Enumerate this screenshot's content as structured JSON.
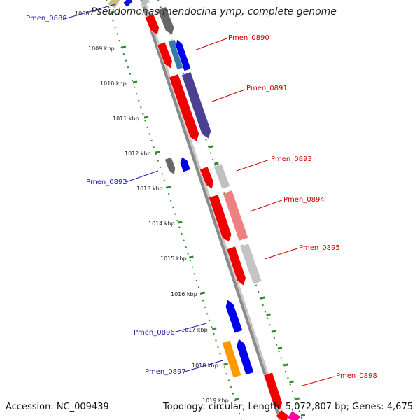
{
  "genome": {
    "organism": "Pseudomonas mendocina ymp",
    "suffix": ", complete genome"
  },
  "footer": {
    "accession": "Accession: NC_009439",
    "topology": "Topology: circular; Length: 5,072,807 bp; Genes: 4,675"
  },
  "colors": {
    "left_label": "#1a1aa8",
    "right_label": "#cc0000",
    "dotted_ring": "#2e8b2e",
    "backbone": "#8a8a8a"
  },
  "kbp_markers": [
    {
      "text": "1008"
    },
    {
      "text": "1009 kbp"
    },
    {
      "text": "1010 kbp"
    },
    {
      "text": "1011 kbp"
    },
    {
      "text": "1012 kbp"
    },
    {
      "text": "1013 kbp"
    },
    {
      "text": "1014 kbp"
    },
    {
      "text": "1015 kbp"
    },
    {
      "text": "1016 kbp"
    },
    {
      "text": "1017 kbp"
    },
    {
      "text": "1018 kbp"
    },
    {
      "text": "1019 kbp"
    }
  ],
  "gene_labels": [
    {
      "text": "Pmen_0888",
      "side": "left"
    },
    {
      "text": "Pmen_0890",
      "side": "right"
    },
    {
      "text": "Pmen_0891",
      "side": "right"
    },
    {
      "text": "Pmen_0893",
      "side": "right"
    },
    {
      "text": "Pmen_0892",
      "side": "left"
    },
    {
      "text": "Pmen_0894",
      "side": "right"
    },
    {
      "text": "Pmen_0895",
      "side": "right"
    },
    {
      "text": "Pmen_0896",
      "side": "left"
    },
    {
      "text": "Pmen_0897",
      "side": "left"
    },
    {
      "text": "Pmen_0898",
      "side": "right"
    }
  ]
}
